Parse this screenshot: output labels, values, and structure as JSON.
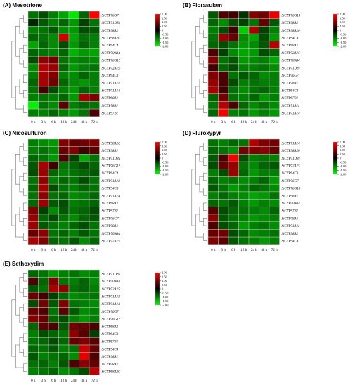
{
  "colors": {
    "high": "#ff0000",
    "mid": "#000000",
    "low": "#00ff00",
    "grid": "#bfbfbf"
  },
  "chart_data": [
    {
      "type": "heatmap",
      "title": "(A) Mesotrione",
      "x": [
        "0 h",
        "3 h",
        "6 h",
        "12 h",
        "24 h",
        "48 h",
        "72 h"
      ],
      "rows": [
        "SiCYP76G7",
        "SiCYP71D81",
        "SiCYP98A2",
        "SiCYP98A20",
        "SiCYP94C4",
        "SiCYP709B4",
        "SiCYP76G15",
        "SiCYP72A15",
        "SiCYP94C3",
        "SiCYP71A11",
        "SiCYP71A14",
        "SiCYP98A1",
        "SiCYP78A1",
        "SiCYP97B1"
      ],
      "values": [
        [
          -0.9,
          -0.6,
          -1.0,
          -1.3,
          -1.8,
          -0.8,
          2.0
        ],
        [
          -0.3,
          -0.7,
          -1.0,
          -0.8,
          -1.2,
          -0.5,
          -0.9
        ],
        [
          -1.0,
          -0.9,
          -0.7,
          -1.1,
          -1.2,
          -0.6,
          -0.7
        ],
        [
          -0.8,
          -0.9,
          -1.1,
          1.6,
          -1.3,
          -0.9,
          -1.0
        ],
        [
          -1.3,
          -0.8,
          -1.1,
          -0.6,
          -1.2,
          -0.8,
          -1.0
        ],
        [
          -0.8,
          -0.9,
          -1.0,
          -0.8,
          -1.4,
          -1.2,
          -1.3
        ],
        [
          -0.6,
          1.1,
          0.9,
          -0.9,
          -1.1,
          -1.0,
          -1.1
        ],
        [
          -1.1,
          1.4,
          1.2,
          -0.8,
          -1.2,
          -1.0,
          -0.9
        ],
        [
          -1.0,
          1.3,
          1.0,
          -1.0,
          -1.1,
          -0.8,
          -1.0
        ],
        [
          -0.8,
          1.3,
          0.9,
          -0.8,
          -1.1,
          -1.2,
          -1.0
        ],
        [
          -0.9,
          0.5,
          -0.6,
          -1.0,
          -1.2,
          -0.8,
          -1.0
        ],
        [
          -1.0,
          -0.9,
          -1.0,
          -0.8,
          -1.2,
          1.3,
          1.0
        ],
        [
          -1.9,
          -0.9,
          -1.1,
          0.7,
          -1.0,
          -0.8,
          -0.9
        ],
        [
          -1.0,
          -1.0,
          -0.8,
          -1.0,
          -1.2,
          -0.9,
          0.6
        ]
      ],
      "legend": {
        "min": -2.0,
        "max": 2.0,
        "ticks": [
          "2.00",
          "1.50",
          "1.00",
          "0.50",
          "0",
          "-0.50",
          "-1.00",
          "-1.50",
          "-2.00"
        ]
      }
    },
    {
      "type": "heatmap",
      "title": "(B) Florasulam",
      "x": [
        "0 h",
        "3 h",
        "6 h",
        "12 h",
        "24 h",
        "48 h",
        "72 h"
      ],
      "rows": [
        "SiCYP76G15",
        "SiCYP98A2",
        "SiCYP98A20",
        "SiCYP94C4",
        "SiCYP98A1",
        "SiCYP72A15",
        "SiCYP709B4",
        "SiCYP71D81",
        "SiCYP76G7",
        "SiCYP78A1",
        "SiCYP94C3",
        "SiCYP97B1",
        "SiCYP71A11",
        "SiCYP71A14"
      ],
      "values": [
        [
          -0.7,
          0.6,
          0.5,
          -0.4,
          1.0,
          0.9,
          1.8
        ],
        [
          -0.8,
          -1.1,
          -0.6,
          -0.5,
          -0.9,
          0.8,
          -0.7
        ],
        [
          -1.0,
          -0.6,
          0.5,
          -1.6,
          1.3,
          -0.5,
          -1.0
        ],
        [
          -0.9,
          1.2,
          0.8,
          -1.1,
          -1.3,
          -0.6,
          -1.2
        ],
        [
          -0.8,
          -0.6,
          -0.9,
          -1.2,
          -1.1,
          -0.7,
          1.4
        ],
        [
          0.6,
          -0.5,
          -1.1,
          -1.3,
          -1.2,
          -0.6,
          -0.8
        ],
        [
          1.0,
          -0.9,
          -0.7,
          -1.2,
          -1.1,
          -1.0,
          -1.3
        ],
        [
          0.5,
          -0.8,
          -0.6,
          -1.0,
          -1.0,
          -0.9,
          -1.1
        ],
        [
          1.0,
          0.6,
          -0.9,
          -0.7,
          -0.8,
          -1.1,
          -1.0
        ],
        [
          1.2,
          0.6,
          -0.6,
          -1.0,
          -0.9,
          -1.0,
          -1.0
        ],
        [
          1.3,
          0.5,
          -0.9,
          -1.1,
          -0.9,
          -0.8,
          -1.0
        ],
        [
          -0.8,
          0.9,
          -0.9,
          -1.0,
          -0.8,
          -1.2,
          -1.0
        ],
        [
          -0.9,
          1.4,
          0.6,
          -0.8,
          -1.1,
          -0.9,
          -1.1
        ],
        [
          -0.8,
          1.9,
          -1.0,
          -0.9,
          -1.2,
          -1.0,
          -1.2
        ]
      ],
      "legend": {
        "min": -2.0,
        "max": 2.0,
        "ticks": [
          "2.00",
          "1.50",
          "1.00",
          "0.50",
          "0",
          "-0.50",
          "-1.00",
          "-1.50",
          "-2.00"
        ]
      }
    },
    {
      "type": "heatmap",
      "title": "(C) Nicosulfuron",
      "x": [
        "0 h",
        "3 h",
        "6 h",
        "12 h",
        "24 h",
        "48 h",
        "72 h"
      ],
      "rows": [
        "SiCYP98A20",
        "SiCYP98A1",
        "SiCYP71D81",
        "SiCYP76G15",
        "SiCYP94C4",
        "SiCYP71A11",
        "SiCYP94C3",
        "SiCYP71A14",
        "SiCYP98A2",
        "SiCYP97B1",
        "SiCYP76G7",
        "SiCYP78A1",
        "SiCYP709B4",
        "SiCYP72A15"
      ],
      "values": [
        [
          -1.0,
          -1.1,
          -1.2,
          1.0,
          0.8,
          0.9,
          1.0
        ],
        [
          -1.0,
          -0.9,
          -1.1,
          0.8,
          1.0,
          0.5,
          0.7
        ],
        [
          -0.8,
          -0.9,
          -1.2,
          0.6,
          -0.5,
          -1.3,
          -0.9
        ],
        [
          -0.7,
          1.3,
          0.5,
          -0.9,
          -0.8,
          -0.6,
          -0.8
        ],
        [
          -0.6,
          1.2,
          -0.8,
          -1.0,
          -0.9,
          -0.8,
          -0.7
        ],
        [
          -0.9,
          1.1,
          -1.0,
          -0.8,
          -0.9,
          -0.6,
          -0.9
        ],
        [
          -0.8,
          1.3,
          -0.6,
          -0.9,
          -1.0,
          -0.8,
          -0.9
        ],
        [
          -0.9,
          1.1,
          -0.9,
          -0.8,
          -1.1,
          -1.0,
          -0.8
        ],
        [
          -0.8,
          1.2,
          -0.7,
          -0.6,
          -1.0,
          -0.9,
          -0.8
        ],
        [
          1.0,
          -0.5,
          -1.1,
          -0.7,
          -0.9,
          -0.8,
          -0.6
        ],
        [
          1.2,
          -0.8,
          -0.6,
          -0.9,
          -1.1,
          -0.8,
          -0.7
        ],
        [
          1.2,
          -0.7,
          -0.9,
          -1.0,
          -0.8,
          -0.6,
          -0.9
        ],
        [
          0.8,
          1.1,
          -0.9,
          -0.8,
          -1.0,
          -0.7,
          -0.9
        ],
        [
          1.3,
          1.0,
          -0.8,
          -0.9,
          -0.7,
          -1.1,
          -0.8
        ]
      ],
      "legend": {
        "min": -2.0,
        "max": 2.0,
        "ticks": [
          "2.00",
          "1.50",
          "1.00",
          "0.50",
          "0",
          "-0.50",
          "-1.00",
          "-1.50",
          "-2.00"
        ]
      }
    },
    {
      "type": "heatmap",
      "title": "(D) Fluroxypyr",
      "x": [
        "0 h",
        "3 h",
        "6 h",
        "12 h",
        "24 h",
        "48 h",
        "72 h"
      ],
      "rows": [
        "SiCYP71A14",
        "SiCYP98A20",
        "SiCYP71D81",
        "SiCYP72A15",
        "SiCYP94C3",
        "SiCYP76G7",
        "SiCYP76G15",
        "SiCYP98A1",
        "SiCYP709B4",
        "SiCYP97B1",
        "SiCYP78A1",
        "SiCYP71A11",
        "SiCYP98A2",
        "SiCYP94C4"
      ],
      "values": [
        [
          -0.9,
          -1.0,
          -0.8,
          -0.9,
          1.4,
          1.0,
          0.9
        ],
        [
          -0.8,
          -0.9,
          -1.1,
          0.9,
          1.0,
          1.1,
          0.8
        ],
        [
          -0.7,
          0.6,
          1.9,
          -0.6,
          -1.0,
          -0.9,
          -1.0
        ],
        [
          -0.6,
          0.8,
          1.2,
          -0.9,
          -1.1,
          -0.8,
          -0.7
        ],
        [
          -1.0,
          -0.6,
          1.2,
          -0.8,
          -1.2,
          -1.0,
          -1.0
        ],
        [
          -0.8,
          -1.0,
          -0.9,
          -1.1,
          -1.0,
          -0.8,
          -1.2
        ],
        [
          -0.7,
          -0.9,
          -1.2,
          -1.0,
          -0.8,
          -0.9,
          -1.1
        ],
        [
          -1.0,
          -0.8,
          -1.0,
          -1.1,
          -1.3,
          -1.2,
          -0.9
        ],
        [
          -0.8,
          -0.9,
          -0.7,
          -1.0,
          -1.2,
          -1.0,
          -1.1
        ],
        [
          0.7,
          -0.6,
          -0.8,
          -0.9,
          -1.0,
          -1.1,
          -0.8
        ],
        [
          1.1,
          -0.7,
          -0.9,
          -1.0,
          -1.2,
          -1.1,
          -1.0
        ],
        [
          0.6,
          -0.6,
          -0.8,
          -1.2,
          -1.0,
          -0.9,
          -1.1
        ],
        [
          0.8,
          0.9,
          -0.6,
          -0.8,
          -1.1,
          -1.0,
          -0.9
        ],
        [
          1.0,
          0.7,
          -0.7,
          -0.9,
          -1.0,
          -1.2,
          -1.0
        ]
      ],
      "legend": {
        "min": -2.0,
        "max": 2.0,
        "ticks": [
          "2.00",
          "1.50",
          "1.00",
          "0.50",
          "0",
          "-0.50",
          "-1.00",
          "-1.50",
          "-2.00"
        ]
      }
    },
    {
      "type": "heatmap",
      "title": "(E) Sethoxydim",
      "x": [
        "0 h",
        "3 h",
        "6 h",
        "12 h",
        "24 h",
        "48 h",
        "72 h"
      ],
      "rows": [
        "SiCYP71D81",
        "SiCYP709B4",
        "SiCYP72A15",
        "SiCYP71A11",
        "SiCYP71A14",
        "SiCYP76G7",
        "SiCYP76G15",
        "SiCYP98A2",
        "SiCYP94C3",
        "SiCYP97B1",
        "SiCYP94C4",
        "SiCYP98A1",
        "SiCYP78A1",
        "SiCYP98A20"
      ],
      "values": [
        [
          -0.8,
          -0.9,
          -1.2,
          -1.0,
          -0.9,
          -1.1,
          -1.0
        ],
        [
          0.6,
          -0.8,
          1.0,
          -0.9,
          -1.0,
          -0.8,
          -1.1
        ],
        [
          -0.7,
          -0.9,
          1.3,
          1.1,
          -0.9,
          -0.8,
          -1.0
        ],
        [
          0.8,
          0.5,
          -0.5,
          -0.8,
          -1.1,
          -1.0,
          -0.9
        ],
        [
          -0.6,
          0.9,
          -0.7,
          1.0,
          -0.9,
          -1.0,
          -1.1
        ],
        [
          0.8,
          0.6,
          -0.9,
          0.7,
          -0.7,
          -1.1,
          -1.0
        ],
        [
          1.0,
          0.8,
          -0.8,
          -0.6,
          -1.0,
          -1.2,
          -1.0
        ],
        [
          -0.8,
          0.7,
          0.6,
          -0.7,
          0.9,
          0.8,
          0.6
        ],
        [
          -1.0,
          -0.6,
          -0.8,
          -0.9,
          1.1,
          0.7,
          -0.5
        ],
        [
          -0.9,
          -0.8,
          -0.6,
          -0.8,
          0.8,
          1.0,
          0.7
        ],
        [
          -0.8,
          -0.9,
          -0.7,
          -1.0,
          -0.9,
          1.6,
          0.8
        ],
        [
          -0.7,
          -1.0,
          -0.9,
          -0.8,
          -1.1,
          1.8,
          0.6
        ],
        [
          -0.9,
          -0.8,
          -1.0,
          -0.7,
          0.6,
          1.1,
          0.8
        ],
        [
          -1.0,
          -0.9,
          -0.8,
          -1.1,
          -0.9,
          -0.6,
          1.5
        ]
      ],
      "legend": {
        "min": -2.0,
        "max": 2.0,
        "ticks": [
          "2.00",
          "1.50",
          "1.00",
          "0.50",
          "0",
          "-0.50",
          "-1.00",
          "-1.50",
          "-2.00"
        ]
      }
    }
  ]
}
